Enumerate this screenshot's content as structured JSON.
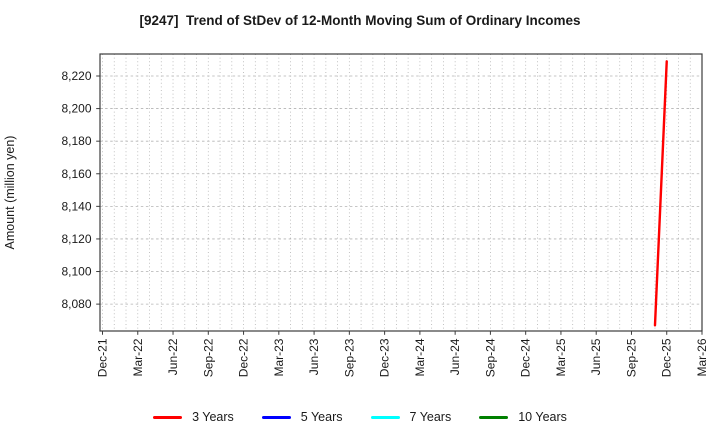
{
  "figure": {
    "background": "#ffffff"
  },
  "chart_data": {
    "type": "line",
    "title": "[9247]  Trend of StDev of 12-Month Moving Sum of Ordinary Incomes",
    "xlabel": "",
    "ylabel": "Amount (million yen)",
    "x_tick_labels": [
      "Dec-21",
      "Mar-22",
      "Jun-22",
      "Sep-22",
      "Dec-22",
      "Mar-23",
      "Jun-23",
      "Sep-23",
      "Dec-23",
      "Mar-24",
      "Jun-24",
      "Sep-24",
      "Dec-24",
      "Mar-25",
      "Jun-25",
      "Sep-25",
      "Dec-25",
      "Mar-26"
    ],
    "y_ticks": [
      8080,
      8100,
      8120,
      8140,
      8160,
      8180,
      8200,
      8220
    ],
    "ylim": [
      8063.5,
      8233.5
    ],
    "grid": true,
    "legend_position": "bottom",
    "series": [
      {
        "name": "3 Years",
        "color": "#ff0000",
        "points": [
          [
            "Nov-25",
            8067
          ],
          [
            "Dec-25",
            8229
          ]
        ]
      },
      {
        "name": "5 Years",
        "color": "#0000ff",
        "points": []
      },
      {
        "name": "7 Years",
        "color": "#00ffff",
        "points": []
      },
      {
        "name": "10 Years",
        "color": "#008000",
        "points": []
      }
    ]
  },
  "colors": {
    "grid": "#b3b3b3",
    "spine": "#3c3c3c",
    "tick": "#3c3c3c",
    "text": "#1a1a1a"
  }
}
